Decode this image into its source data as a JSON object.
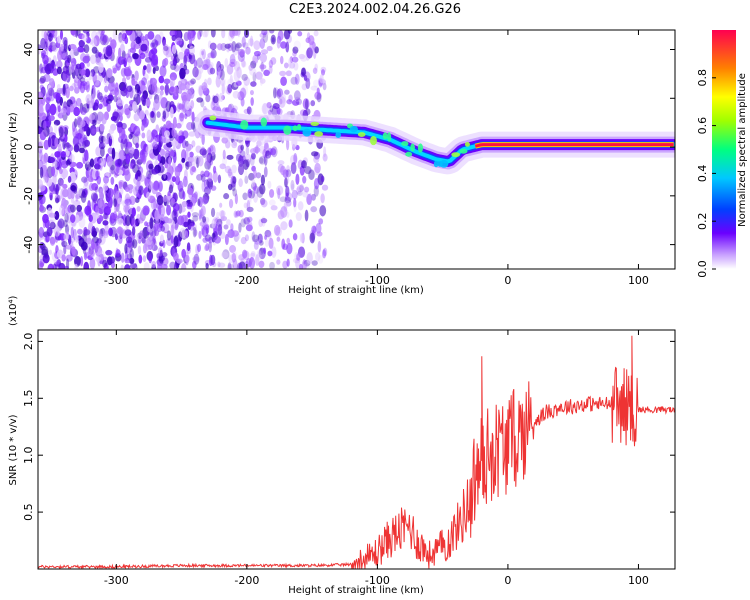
{
  "title": "C2E3.2024.002.04.26.G26",
  "chart_data": [
    {
      "type": "heatmap",
      "name": "spectrogram",
      "xlabel": "Height of straight line (km)",
      "ylabel": "Frequency (Hz)",
      "xlim": [
        -360,
        128
      ],
      "ylim": [
        -50,
        48
      ],
      "xticks": [
        -300,
        -200,
        -100,
        0,
        100
      ],
      "yticks": [
        -40,
        -20,
        0,
        20,
        40
      ],
      "colorbar": {
        "label": "Normalized spectral amplitude",
        "range": [
          0,
          1
        ],
        "ticks": [
          "0.0",
          "0.2",
          "0.4",
          "0.6",
          "0.8"
        ],
        "tick_values": [
          0.0,
          0.2,
          0.4,
          0.6,
          0.8
        ]
      },
      "signal_track": {
        "heights": [
          -230,
          -200,
          -170,
          -140,
          -110,
          -90,
          -70,
          -55,
          -45,
          -35,
          -20,
          0,
          50,
          100,
          128
        ],
        "frequencies": [
          10,
          8,
          8,
          7,
          6,
          3,
          -2,
          -5,
          -6,
          -1,
          1,
          1,
          1,
          1,
          1
        ]
      }
    },
    {
      "type": "line",
      "name": "snr",
      "xlabel": "Height of straight line (km)",
      "ylabel": "SNR (10 * v/v)",
      "yscale_label": "(x10⁴)",
      "xlim": [
        -360,
        128
      ],
      "ylim": [
        0,
        2.1
      ],
      "xticks": [
        -300,
        -200,
        -100,
        0,
        100
      ],
      "yticks": [
        0.5,
        1.0,
        1.5,
        2.0
      ],
      "ytick_labels": [
        "0.5",
        "1.0",
        "1.5",
        "2.0"
      ],
      "color": "#ee3333",
      "series": [
        {
          "name": "SNR",
          "x": [
            -360,
            -300,
            -250,
            -200,
            -150,
            -120,
            -110,
            -100,
            -90,
            -80,
            -75,
            -70,
            -60,
            -50,
            -45,
            -40,
            -35,
            -30,
            -25,
            -20,
            -15,
            -10,
            0,
            10,
            20,
            30,
            40,
            50,
            60,
            70,
            80,
            85,
            90,
            95,
            100,
            110,
            128
          ],
          "y": [
            0.02,
            0.02,
            0.03,
            0.03,
            0.03,
            0.04,
            0.08,
            0.15,
            0.28,
            0.35,
            0.38,
            0.25,
            0.12,
            0.2,
            0.25,
            0.35,
            0.45,
            0.6,
            0.8,
            0.95,
            1.0,
            1.05,
            1.1,
            1.2,
            1.3,
            1.38,
            1.42,
            1.43,
            1.45,
            1.45,
            1.45,
            1.45,
            1.43,
            1.42,
            1.4,
            1.4,
            1.4
          ]
        }
      ],
      "annotations": [
        {
          "x": -20,
          "y": 1.87,
          "text": ""
        },
        {
          "x": 95,
          "y": 2.05,
          "text": ""
        }
      ]
    }
  ]
}
